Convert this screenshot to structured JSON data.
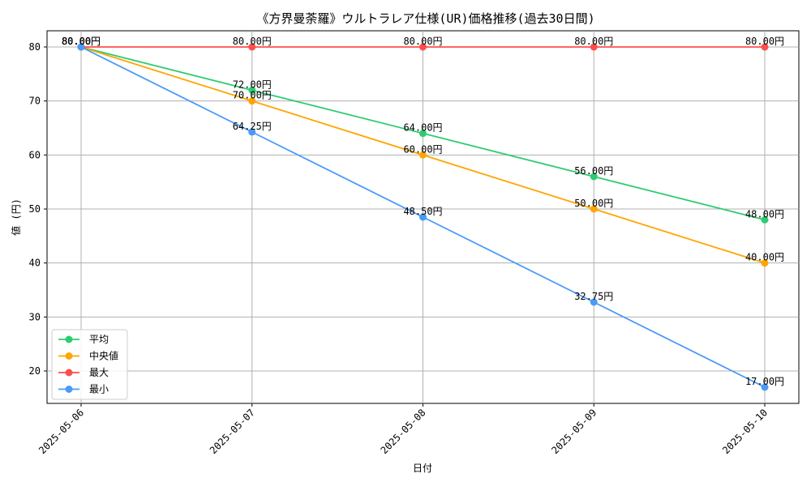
{
  "chart_data": {
    "type": "line",
    "title": "《方界曼荼羅》ウルトラレア仕様(UR)価格推移(過去30日間)",
    "xlabel": "日付",
    "ylabel": "値 (円)",
    "categories": [
      "2025-05-06",
      "2025-05-07",
      "2025-05-08",
      "2025-05-09",
      "2025-05-10"
    ],
    "ylim": [
      14,
      83
    ],
    "yticks": [
      20,
      30,
      40,
      50,
      60,
      70,
      80
    ],
    "grid": true,
    "legend_position": "bottom-left",
    "label_suffix": "円",
    "series": [
      {
        "name": "平均",
        "color": "#2ecc71",
        "values": [
          80.0,
          72.0,
          64.0,
          56.0,
          48.0
        ],
        "labels": [
          "80.00円",
          "72.00円",
          "64.00円",
          "56.00円",
          "48.00円"
        ]
      },
      {
        "name": "中央値",
        "color": "#ffa500",
        "values": [
          80.0,
          70.0,
          60.0,
          50.0,
          40.0
        ],
        "labels": [
          "80.00円",
          "70.00円",
          "60.00円",
          "50.00円",
          "40.00円"
        ]
      },
      {
        "name": "最大",
        "color": "#ff4d4d",
        "values": [
          80.0,
          80.0,
          80.0,
          80.0,
          80.0
        ],
        "labels": [
          "80.00円",
          "80.00円",
          "80.00円",
          "80.00円",
          "80.00円"
        ]
      },
      {
        "name": "最小",
        "color": "#4a9af5",
        "values": [
          80.0,
          64.25,
          48.5,
          32.75,
          17.0
        ],
        "labels": [
          "80.00円",
          "64.25円",
          "48.50円",
          "32.75円",
          "17.00円"
        ]
      }
    ]
  }
}
